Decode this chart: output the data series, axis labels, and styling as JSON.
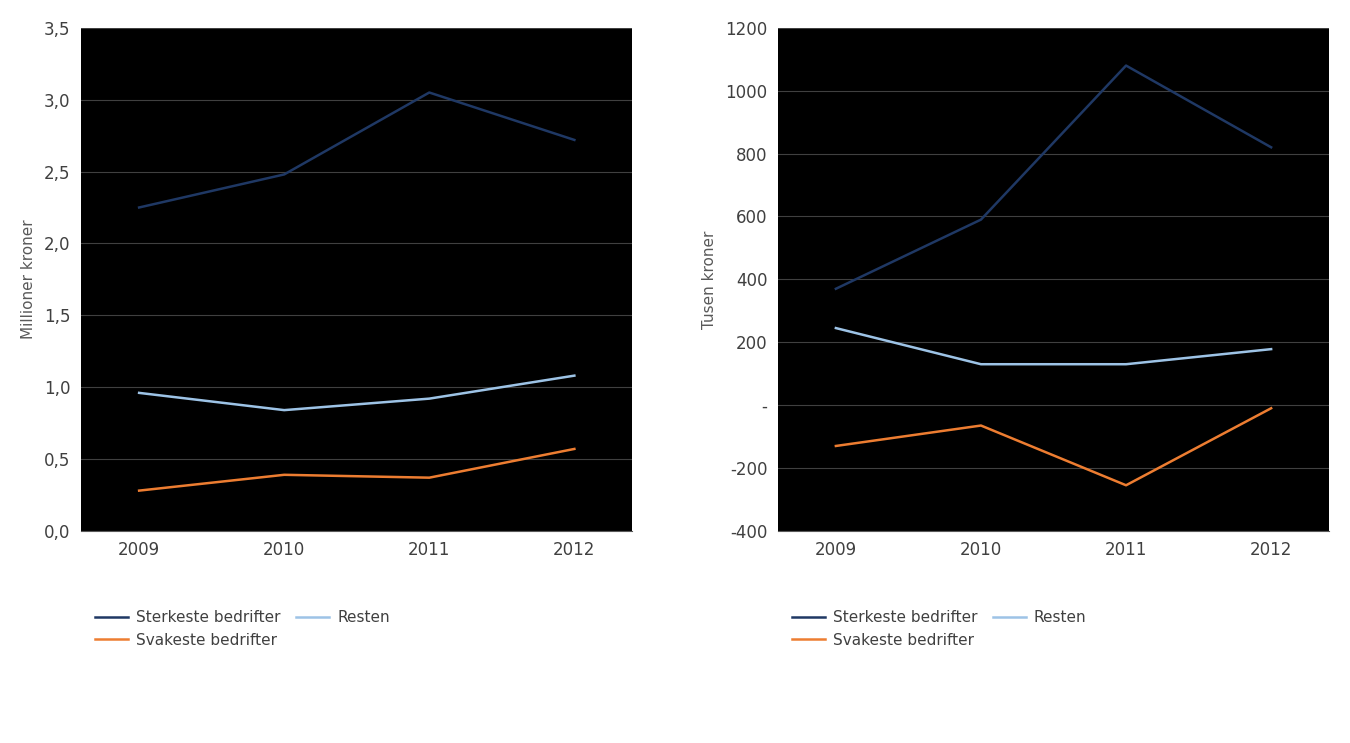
{
  "years": [
    2009,
    2010,
    2011,
    2012
  ],
  "left": {
    "sterkeste": [
      2.25,
      2.48,
      3.05,
      2.72
    ],
    "svakeste": [
      0.28,
      0.39,
      0.37,
      0.57
    ],
    "resten": [
      0.96,
      0.84,
      0.92,
      1.08
    ],
    "ylabel": "Millioner kroner",
    "ylim": [
      0.0,
      3.5
    ],
    "yticks": [
      0.0,
      0.5,
      1.0,
      1.5,
      2.0,
      2.5,
      3.0,
      3.5
    ]
  },
  "right": {
    "sterkeste": [
      370,
      590,
      1080,
      820
    ],
    "svakeste": [
      -130,
      -65,
      -255,
      -10
    ],
    "resten": [
      245,
      130,
      130,
      178
    ],
    "ylabel": "Tusen kroner",
    "ylim": [
      -400,
      1200
    ],
    "yticks": [
      -400,
      -200,
      0,
      200,
      400,
      600,
      800,
      1000,
      1200
    ]
  },
  "color_sterkeste": "#1F3864",
  "color_svakeste": "#ED7D31",
  "color_resten": "#9DC3E6",
  "legend_sterkeste": "Sterkeste bedrifter",
  "legend_svakeste": "Svakeste bedrifter",
  "legend_resten": "Resten",
  "fig_background": "#FFFFFF",
  "plot_background": "#000000",
  "grid_color": "#404040",
  "tick_color": "#404040",
  "label_color": "#595959",
  "linewidth": 1.8,
  "spine_color": "#595959"
}
